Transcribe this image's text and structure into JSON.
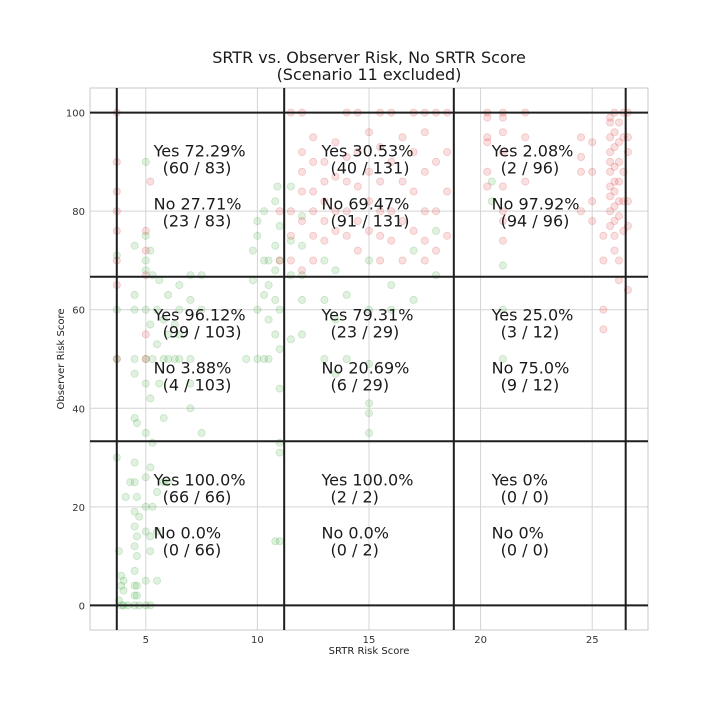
{
  "chart_data": {
    "type": "scatter",
    "title": "SRTR vs. Observer Risk, No SRTR Score",
    "subtitle": "(Scenario 11 excluded)",
    "xlabel": "SRTR Risk Score",
    "ylabel": "Observer Risk Score",
    "xlim": [
      2.5,
      27.5
    ],
    "ylim": [
      -5,
      105
    ],
    "xticks": [
      5,
      10,
      15,
      20,
      25
    ],
    "yticks": [
      0,
      20,
      40,
      60,
      80,
      100
    ],
    "grid": true,
    "dividers": {
      "x": [
        3.7,
        11.2,
        18.8,
        26.5
      ],
      "y": [
        0,
        33.3,
        66.7,
        100
      ]
    },
    "series": [
      {
        "color": "#2ca02c",
        "points": [
          [
            3.7,
            71
          ],
          [
            3.7,
            60
          ],
          [
            3.7,
            50
          ],
          [
            3.7,
            30
          ],
          [
            3.8,
            11
          ],
          [
            3.9,
            6
          ],
          [
            4.0,
            5
          ],
          [
            3.9,
            4
          ],
          [
            4.0,
            3
          ],
          [
            3.8,
            1
          ],
          [
            3.9,
            0
          ],
          [
            4.0,
            0
          ],
          [
            4.2,
            0
          ],
          [
            4.1,
            22
          ],
          [
            4.3,
            25
          ],
          [
            4.5,
            0
          ],
          [
            4.5,
            2
          ],
          [
            4.5,
            4
          ],
          [
            4.5,
            7
          ],
          [
            4.5,
            12
          ],
          [
            4.5,
            16
          ],
          [
            4.5,
            19
          ],
          [
            4.5,
            25
          ],
          [
            4.5,
            29
          ],
          [
            4.5,
            38
          ],
          [
            4.5,
            47
          ],
          [
            4.5,
            50
          ],
          [
            4.5,
            60
          ],
          [
            4.5,
            63
          ],
          [
            4.5,
            73
          ],
          [
            4.7,
            0
          ],
          [
            4.6,
            2
          ],
          [
            4.6,
            4
          ],
          [
            4.6,
            10
          ],
          [
            4.6,
            14
          ],
          [
            4.7,
            18
          ],
          [
            4.6,
            22
          ],
          [
            4.6,
            37
          ],
          [
            5.0,
            0
          ],
          [
            5.0,
            5
          ],
          [
            5.0,
            15
          ],
          [
            5.0,
            20
          ],
          [
            5.0,
            26
          ],
          [
            5.0,
            35
          ],
          [
            5.0,
            45
          ],
          [
            5.0,
            50
          ],
          [
            5.0,
            60
          ],
          [
            5.0,
            68
          ],
          [
            5.0,
            70
          ],
          [
            5.0,
            75
          ],
          [
            5.0,
            90
          ],
          [
            5.2,
            0
          ],
          [
            5.2,
            11
          ],
          [
            5.2,
            14
          ],
          [
            5.3,
            20
          ],
          [
            5.2,
            28
          ],
          [
            5.3,
            33
          ],
          [
            5.2,
            42
          ],
          [
            5.3,
            50
          ],
          [
            5.2,
            57
          ],
          [
            5.3,
            67
          ],
          [
            5.2,
            72
          ],
          [
            5.5,
            5
          ],
          [
            5.5,
            15
          ],
          [
            5.5,
            23
          ],
          [
            5.6,
            45
          ],
          [
            5.5,
            53
          ],
          [
            5.5,
            60
          ],
          [
            5.6,
            66
          ],
          [
            5.8,
            25
          ],
          [
            5.8,
            38
          ],
          [
            5.8,
            50
          ],
          [
            5.8,
            58
          ],
          [
            6.0,
            25
          ],
          [
            6.0,
            50
          ],
          [
            6.0,
            55
          ],
          [
            6.0,
            63
          ],
          [
            6.3,
            50
          ],
          [
            6.3,
            57
          ],
          [
            6.5,
            50
          ],
          [
            6.5,
            55
          ],
          [
            6.5,
            60
          ],
          [
            6.5,
            65
          ],
          [
            7.0,
            40
          ],
          [
            7.0,
            45
          ],
          [
            7.0,
            50
          ],
          [
            7.0,
            62
          ],
          [
            7.0,
            67
          ],
          [
            7.5,
            35
          ],
          [
            7.5,
            60
          ],
          [
            7.5,
            67
          ],
          [
            9.5,
            50
          ],
          [
            9.8,
            66
          ],
          [
            9.8,
            72
          ],
          [
            10.0,
            50
          ],
          [
            10.0,
            60
          ],
          [
            10.0,
            75
          ],
          [
            10.0,
            78
          ],
          [
            10.3,
            50
          ],
          [
            10.3,
            63
          ],
          [
            10.3,
            70
          ],
          [
            10.3,
            80
          ],
          [
            10.5,
            50
          ],
          [
            10.5,
            58
          ],
          [
            10.5,
            65
          ],
          [
            10.5,
            70
          ],
          [
            10.8,
            13
          ],
          [
            10.8,
            55
          ],
          [
            10.8,
            62
          ],
          [
            10.8,
            68
          ],
          [
            10.8,
            73
          ],
          [
            10.8,
            82
          ],
          [
            10.9,
            85
          ],
          [
            11.0,
            13
          ],
          [
            11.0,
            31
          ],
          [
            11.0,
            33
          ],
          [
            11.0,
            44
          ],
          [
            11.0,
            52
          ],
          [
            11.0,
            60
          ],
          [
            11.0,
            70
          ],
          [
            11.0,
            77
          ],
          [
            11.5,
            54
          ],
          [
            11.5,
            67
          ],
          [
            11.5,
            74
          ],
          [
            11.5,
            85
          ],
          [
            12.0,
            55
          ],
          [
            12.0,
            62
          ],
          [
            12.0,
            67
          ],
          [
            12.0,
            73
          ],
          [
            12.0,
            79
          ],
          [
            13.0,
            50
          ],
          [
            13.0,
            62
          ],
          [
            13.0,
            70
          ],
          [
            13.5,
            47
          ],
          [
            13.5,
            58
          ],
          [
            13.5,
            68
          ],
          [
            14.0,
            50
          ],
          [
            14.0,
            63
          ],
          [
            15.0,
            35
          ],
          [
            15.0,
            39
          ],
          [
            15.0,
            41
          ],
          [
            15.0,
            49
          ],
          [
            15.0,
            60
          ],
          [
            15.0,
            70
          ],
          [
            16.0,
            60
          ],
          [
            16.0,
            65
          ],
          [
            17.0,
            62
          ],
          [
            17.0,
            72
          ],
          [
            18.0,
            67
          ],
          [
            18.0,
            76
          ],
          [
            20.5,
            86
          ],
          [
            20.5,
            82
          ],
          [
            21.0,
            50
          ],
          [
            21.0,
            60
          ],
          [
            21.0,
            69
          ]
        ]
      },
      {
        "color": "#d62728",
        "points": [
          [
            3.7,
            100
          ],
          [
            3.7,
            90
          ],
          [
            3.7,
            84
          ],
          [
            3.7,
            80
          ],
          [
            3.7,
            76
          ],
          [
            3.7,
            70
          ],
          [
            3.7,
            65
          ],
          [
            3.7,
            50
          ],
          [
            5.0,
            76
          ],
          [
            5.0,
            72
          ],
          [
            5.0,
            67
          ],
          [
            5.0,
            55
          ],
          [
            5.0,
            50
          ],
          [
            5.2,
            86
          ],
          [
            11.0,
            70
          ],
          [
            11.0,
            80
          ],
          [
            11.5,
            70
          ],
          [
            11.5,
            75
          ],
          [
            11.5,
            80
          ],
          [
            11.5,
            100
          ],
          [
            12.0,
            68
          ],
          [
            12.0,
            78
          ],
          [
            12.0,
            84
          ],
          [
            12.0,
            88
          ],
          [
            12.0,
            92
          ],
          [
            12.0,
            100
          ],
          [
            12.5,
            70
          ],
          [
            12.5,
            75
          ],
          [
            12.5,
            80
          ],
          [
            12.5,
            84
          ],
          [
            12.5,
            90
          ],
          [
            12.5,
            95
          ],
          [
            13.0,
            74
          ],
          [
            13.0,
            78
          ],
          [
            13.0,
            82
          ],
          [
            13.0,
            86
          ],
          [
            13.0,
            90
          ],
          [
            13.5,
            76
          ],
          [
            13.5,
            80
          ],
          [
            13.5,
            87
          ],
          [
            13.5,
            94
          ],
          [
            14.0,
            75
          ],
          [
            14.0,
            80
          ],
          [
            14.0,
            86
          ],
          [
            14.0,
            91
          ],
          [
            14.0,
            100
          ],
          [
            14.5,
            72
          ],
          [
            14.5,
            78
          ],
          [
            14.5,
            85
          ],
          [
            14.5,
            92
          ],
          [
            14.5,
            100
          ],
          [
            15.0,
            76
          ],
          [
            15.0,
            82
          ],
          [
            15.0,
            88
          ],
          [
            15.0,
            96
          ],
          [
            15.5,
            70
          ],
          [
            15.5,
            75
          ],
          [
            15.5,
            80
          ],
          [
            15.5,
            86
          ],
          [
            15.5,
            93
          ],
          [
            15.5,
            100
          ],
          [
            16.0,
            74
          ],
          [
            16.0,
            80
          ],
          [
            16.0,
            90
          ],
          [
            16.0,
            100
          ],
          [
            16.5,
            70
          ],
          [
            16.5,
            78
          ],
          [
            16.5,
            86
          ],
          [
            16.5,
            95
          ],
          [
            17.0,
            76
          ],
          [
            17.0,
            84
          ],
          [
            17.0,
            92
          ],
          [
            17.0,
            100
          ],
          [
            17.5,
            70
          ],
          [
            17.5,
            74
          ],
          [
            17.5,
            80
          ],
          [
            17.5,
            88
          ],
          [
            17.5,
            96
          ],
          [
            17.5,
            100
          ],
          [
            18.0,
            72
          ],
          [
            18.0,
            80
          ],
          [
            18.0,
            90
          ],
          [
            18.0,
            100
          ],
          [
            18.5,
            75
          ],
          [
            18.5,
            84
          ],
          [
            18.5,
            92
          ],
          [
            18.5,
            100
          ],
          [
            20.3,
            100
          ],
          [
            20.3,
            99
          ],
          [
            20.3,
            95
          ],
          [
            20.3,
            94
          ],
          [
            20.3,
            88
          ],
          [
            20.3,
            85
          ],
          [
            21.0,
            100
          ],
          [
            21.0,
            99
          ],
          [
            21.0,
            96
          ],
          [
            21.0,
            92
          ],
          [
            21.0,
            85
          ],
          [
            21.0,
            80
          ],
          [
            21.0,
            78
          ],
          [
            21.0,
            74
          ],
          [
            22.0,
            100
          ],
          [
            22.0,
            95
          ],
          [
            22.0,
            86
          ],
          [
            24.5,
            95
          ],
          [
            24.5,
            91
          ],
          [
            24.5,
            88
          ],
          [
            24.5,
            80
          ],
          [
            25.0,
            94
          ],
          [
            25.0,
            88
          ],
          [
            25.0,
            82
          ],
          [
            25.0,
            78
          ],
          [
            25.5,
            60
          ],
          [
            25.5,
            56
          ],
          [
            25.5,
            70
          ],
          [
            25.5,
            75
          ],
          [
            25.8,
            99
          ],
          [
            25.8,
            98
          ],
          [
            25.8,
            95
          ],
          [
            25.8,
            92
          ],
          [
            25.8,
            90
          ],
          [
            25.8,
            88
          ],
          [
            25.8,
            85
          ],
          [
            25.8,
            83
          ],
          [
            25.8,
            80
          ],
          [
            25.8,
            77
          ],
          [
            26.0,
            100
          ],
          [
            26.0,
            96
          ],
          [
            26.0,
            93
          ],
          [
            26.0,
            89
          ],
          [
            26.0,
            86
          ],
          [
            26.0,
            84
          ],
          [
            26.0,
            81
          ],
          [
            26.0,
            78
          ],
          [
            26.0,
            75
          ],
          [
            26.0,
            72
          ],
          [
            26.2,
            98
          ],
          [
            26.2,
            94
          ],
          [
            26.2,
            90
          ],
          [
            26.2,
            86
          ],
          [
            26.2,
            82
          ],
          [
            26.2,
            79
          ],
          [
            26.2,
            70
          ],
          [
            26.2,
            66
          ],
          [
            26.4,
            100
          ],
          [
            26.4,
            95
          ],
          [
            26.4,
            88
          ],
          [
            26.4,
            82
          ],
          [
            26.4,
            76
          ],
          [
            26.6,
            100
          ],
          [
            26.6,
            95
          ],
          [
            26.6,
            92
          ],
          [
            26.6,
            82
          ],
          [
            26.6,
            77
          ],
          [
            26.6,
            64
          ]
        ]
      }
    ],
    "annotations": [
      {
        "yes": "Yes 72.29%",
        "yes_count": "(60 / 83)",
        "no": "No 27.71%",
        "no_count": "(23 / 83)"
      },
      {
        "yes": "Yes 30.53%",
        "yes_count": "(40 / 131)",
        "no": "No 69.47%",
        "no_count": "(91 / 131)"
      },
      {
        "yes": "Yes 2.08%",
        "yes_count": "(2 / 96)",
        "no": "No 97.92%",
        "no_count": "(94 / 96)"
      },
      {
        "yes": "Yes 96.12%",
        "yes_count": "(99 / 103)",
        "no": "No 3.88%",
        "no_count": "(4 / 103)"
      },
      {
        "yes": "Yes 79.31%",
        "yes_count": "(23 / 29)",
        "no": "No 20.69%",
        "no_count": "(6 / 29)"
      },
      {
        "yes": "Yes 25.0%",
        "yes_count": "(3 / 12)",
        "no": "No 75.0%",
        "no_count": "(9 / 12)"
      },
      {
        "yes": "Yes 100.0%",
        "yes_count": "(66 / 66)",
        "no": "No 0.0%",
        "no_count": "(0 / 66)"
      },
      {
        "yes": "Yes 100.0%",
        "yes_count": "(2 / 2)",
        "no": "No 0.0%",
        "no_count": "(0 / 2)"
      },
      {
        "yes": "Yes 0%",
        "yes_count": "(0 / 0)",
        "no": "No 0%",
        "no_count": "(0 / 0)"
      }
    ]
  }
}
